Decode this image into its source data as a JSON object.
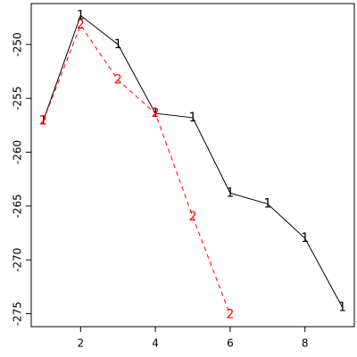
{
  "chart_data": {
    "type": "line",
    "x": [
      1,
      2,
      3,
      4,
      5,
      6,
      7,
      8,
      9
    ],
    "series": [
      {
        "name": "1",
        "color": "#000000",
        "dash": false,
        "values": [
          -257.1,
          -247.3,
          -250.0,
          -256.4,
          -256.8,
          -263.8,
          -264.8,
          -268.0,
          -274.4
        ]
      },
      {
        "name": "2",
        "color": "#ff0000",
        "dash": true,
        "values": [
          -257.1,
          -248.2,
          -253.3,
          -256.4,
          -266.0,
          -275.1,
          null,
          null,
          null
        ]
      }
    ],
    "xlim": [
      0.68,
      9.32
    ],
    "xticks": [
      2,
      4,
      6,
      8
    ],
    "ylim": [
      -276.2,
      -246.2
    ],
    "yticks": [
      -275,
      -270,
      -265,
      -260,
      -255,
      -250
    ]
  }
}
